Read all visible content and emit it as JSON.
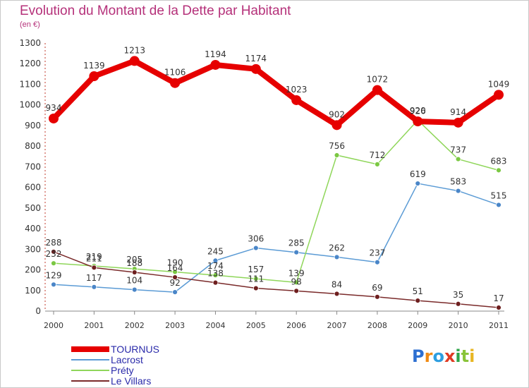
{
  "title": "Evolution du Montant de la Dette par Habitant",
  "subtitle": "(en €)",
  "logo": {
    "text": "Proxiti",
    "letters": [
      "P",
      "r",
      "o",
      "x",
      "i",
      "t",
      "i"
    ],
    "colors": [
      "#2d6fd1",
      "#f08a12",
      "#2d9ee0",
      "#e03a22",
      "#2fa64a",
      "#8ac43a",
      "#e8b622"
    ]
  },
  "chart_data": {
    "type": "line",
    "title": "Evolution du Montant de la Dette par Habitant",
    "ylabel": "(en €)",
    "xlabel": "",
    "ylim": [
      0,
      1300
    ],
    "yticks": [
      0,
      100,
      200,
      300,
      400,
      500,
      600,
      700,
      800,
      900,
      1000,
      1100,
      1200,
      1300
    ],
    "categories": [
      "2000",
      "2001",
      "2002",
      "2003",
      "2004",
      "2005",
      "2006",
      "2007",
      "2008",
      "2009",
      "2010",
      "2011"
    ],
    "grid": false,
    "legend_position": "bottom-left",
    "series": [
      {
        "name": "TOURNUS",
        "color": "#e60000",
        "style": "thick",
        "values": [
          934,
          1139,
          1213,
          1106,
          1194,
          1174,
          1023,
          902,
          1072,
          920,
          914,
          1049
        ]
      },
      {
        "name": "Lacrost",
        "color": "#5b9bd5",
        "style": "thin",
        "marker": "#4a86c8",
        "values": [
          129,
          117,
          104,
          92,
          245,
          306,
          285,
          262,
          237,
          619,
          583,
          515
        ]
      },
      {
        "name": "Préty",
        "color": "#8fd65a",
        "style": "thin",
        "marker": "#7bc843",
        "values": [
          232,
          219,
          205,
          190,
          174,
          157,
          139,
          756,
          712,
          926,
          737,
          683
        ]
      },
      {
        "name": "Le Villars",
        "color": "#7a2a2a",
        "style": "thin",
        "marker": "#6e1f1f",
        "values": [
          288,
          211,
          188,
          164,
          138,
          111,
          98,
          84,
          69,
          51,
          35,
          17
        ]
      }
    ]
  }
}
